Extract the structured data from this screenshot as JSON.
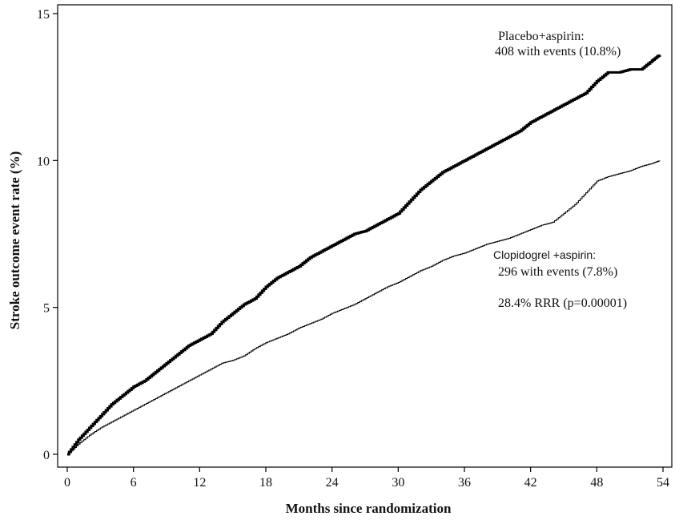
{
  "chart_data": {
    "type": "line",
    "title": "",
    "xlabel": "Months since randomization",
    "ylabel": "Stroke outcome event rate (%)",
    "xlim": [
      0,
      54
    ],
    "ylim": [
      0,
      15
    ],
    "x_ticks": [
      0,
      6,
      12,
      18,
      24,
      30,
      36,
      42,
      48,
      54
    ],
    "y_ticks": [
      0,
      5,
      10,
      15
    ],
    "grid": false,
    "legend": "none",
    "series": [
      {
        "name": "Placebo+aspirin",
        "style": "thick",
        "color": "#000000",
        "x": [
          0,
          1,
          2,
          3,
          4,
          5,
          6,
          7,
          8,
          9,
          10,
          11,
          12,
          13,
          14,
          15,
          16,
          17,
          18,
          19,
          20,
          21,
          22,
          23,
          24,
          25,
          26,
          27,
          28,
          29,
          30,
          31,
          32,
          33,
          34,
          35,
          36,
          37,
          38,
          39,
          40,
          41,
          42,
          43,
          44,
          45,
          46,
          47,
          48,
          49,
          50,
          51,
          52,
          53,
          53.7
        ],
        "y": [
          0,
          0.5,
          0.9,
          1.3,
          1.7,
          2.0,
          2.3,
          2.5,
          2.8,
          3.1,
          3.4,
          3.7,
          3.9,
          4.1,
          4.5,
          4.8,
          5.1,
          5.3,
          5.7,
          6.0,
          6.2,
          6.4,
          6.7,
          6.9,
          7.1,
          7.3,
          7.5,
          7.6,
          7.8,
          8.0,
          8.2,
          8.6,
          9.0,
          9.3,
          9.6,
          9.8,
          10.0,
          10.2,
          10.4,
          10.6,
          10.8,
          11.0,
          11.3,
          11.5,
          11.7,
          11.9,
          12.1,
          12.3,
          12.7,
          13.0,
          13.0,
          13.1,
          13.1,
          13.4,
          13.6
        ]
      },
      {
        "name": "Clopidogrel +aspirin",
        "style": "thin",
        "color": "#000000",
        "x": [
          0,
          1,
          2,
          3,
          4,
          5,
          6,
          7,
          8,
          9,
          10,
          11,
          12,
          13,
          14,
          15,
          16,
          17,
          18,
          19,
          20,
          21,
          22,
          23,
          24,
          25,
          26,
          27,
          28,
          29,
          30,
          31,
          32,
          33,
          34,
          35,
          36,
          37,
          38,
          39,
          40,
          41,
          42,
          43,
          44,
          45,
          46,
          47,
          48,
          49,
          50,
          51,
          52,
          53,
          53.7
        ],
        "y": [
          0,
          0.35,
          0.65,
          0.9,
          1.1,
          1.3,
          1.5,
          1.7,
          1.9,
          2.1,
          2.3,
          2.5,
          2.7,
          2.9,
          3.1,
          3.2,
          3.35,
          3.6,
          3.8,
          3.95,
          4.1,
          4.3,
          4.45,
          4.6,
          4.8,
          4.95,
          5.1,
          5.3,
          5.5,
          5.7,
          5.85,
          6.05,
          6.25,
          6.4,
          6.6,
          6.75,
          6.85,
          7.0,
          7.15,
          7.25,
          7.35,
          7.5,
          7.65,
          7.8,
          7.9,
          8.2,
          8.5,
          8.9,
          9.3,
          9.45,
          9.55,
          9.65,
          9.8,
          9.9,
          10.0
        ]
      }
    ],
    "annotations": {
      "placebo_name": "Placebo+aspirin:",
      "placebo_events": "408 with events (10.8%)",
      "clopidogrel_name": "Clopidogrel +aspirin:",
      "clopidogrel_events": "296 with events (7.8%)",
      "rrr": "28.4% RRR (p=0.00001)"
    }
  }
}
